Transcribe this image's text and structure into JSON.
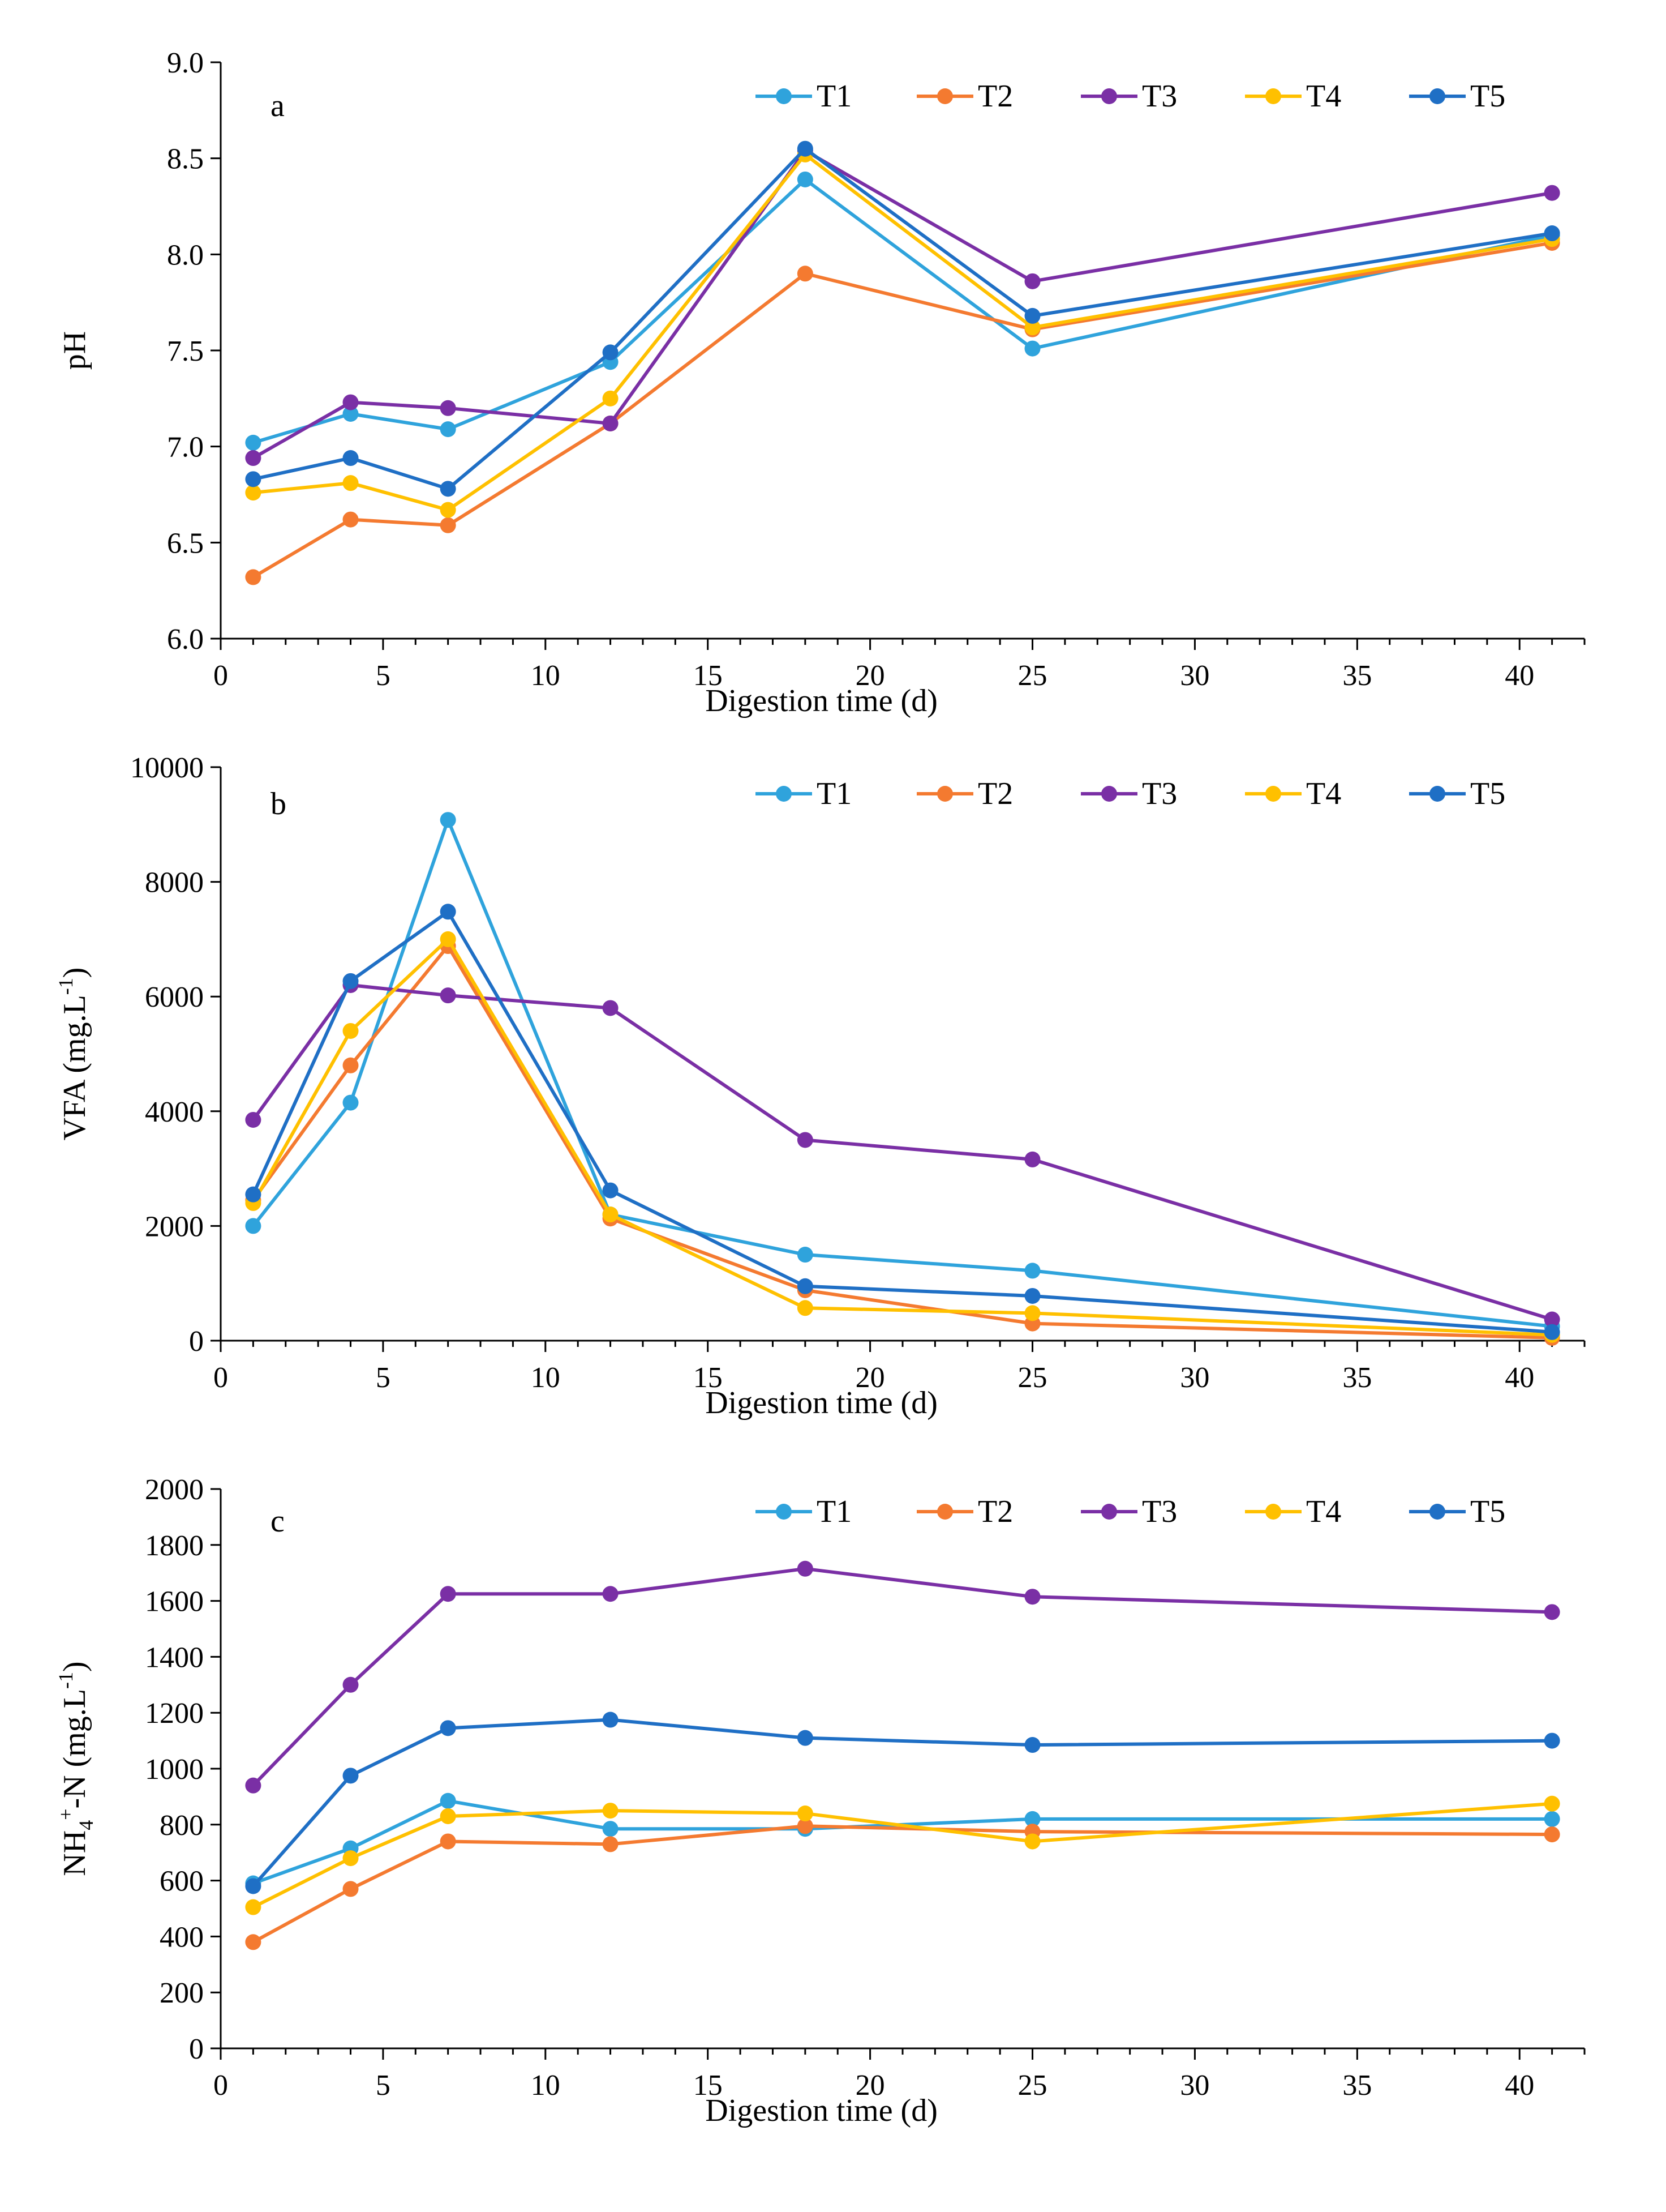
{
  "colors": {
    "T1": "#2fa3dc",
    "T2": "#f47a30",
    "T3": "#7a2fa5",
    "T4": "#ffc000",
    "T5": "#1f6fc5",
    "axis": "#000000"
  },
  "chart_data": [
    {
      "type": "line",
      "panel_label": "a",
      "title": "",
      "xlabel": "Digestion time (d)",
      "ylabel": "pH",
      "xlim": [
        0,
        42
      ],
      "ylim": [
        6.0,
        9.0
      ],
      "x_ticks": [
        "0",
        "5",
        "10",
        "15",
        "20",
        "25",
        "30",
        "35",
        "40"
      ],
      "y_ticks": [
        "6.0",
        "6.5",
        "7.0",
        "7.5",
        "8.0",
        "8.5",
        "9.0"
      ],
      "y_tick_values": [
        6.0,
        6.5,
        7.0,
        7.5,
        8.0,
        8.5,
        9.0
      ],
      "x": [
        1,
        4,
        7,
        12,
        18,
        25,
        41
      ],
      "legend": [
        "T1",
        "T2",
        "T3",
        "T4",
        "T5"
      ],
      "series": [
        {
          "name": "T1",
          "values": [
            7.02,
            7.17,
            7.09,
            7.44,
            8.39,
            7.51,
            8.1
          ]
        },
        {
          "name": "T2",
          "values": [
            6.32,
            6.62,
            6.59,
            7.12,
            7.9,
            7.61,
            8.06
          ]
        },
        {
          "name": "T3",
          "values": [
            6.94,
            7.23,
            7.2,
            7.12,
            8.54,
            7.86,
            8.32
          ]
        },
        {
          "name": "T4",
          "values": [
            6.76,
            6.81,
            6.67,
            7.25,
            8.52,
            7.62,
            8.08
          ]
        },
        {
          "name": "T5",
          "values": [
            6.83,
            6.94,
            6.78,
            7.49,
            8.55,
            7.68,
            8.11
          ]
        }
      ]
    },
    {
      "type": "line",
      "panel_label": "b",
      "title": "",
      "xlabel": "Digestion time (d)",
      "ylabel": "VFA (mg.L",
      "ylabel_sup": "-1",
      "ylabel_end": ")",
      "xlim": [
        0,
        42
      ],
      "ylim": [
        0,
        10000
      ],
      "x_ticks": [
        "0",
        "5",
        "10",
        "15",
        "20",
        "25",
        "30",
        "35",
        "40"
      ],
      "y_ticks": [
        "0",
        "2000",
        "4000",
        "6000",
        "8000",
        "10000"
      ],
      "y_tick_values": [
        0,
        2000,
        4000,
        6000,
        8000,
        10000
      ],
      "x": [
        1,
        4,
        7,
        12,
        18,
        25,
        41
      ],
      "legend": [
        "T1",
        "T2",
        "T3",
        "T4",
        "T5"
      ],
      "series": [
        {
          "name": "T1",
          "values": [
            2000,
            4150,
            9080,
            2200,
            1500,
            1220,
            250
          ]
        },
        {
          "name": "T2",
          "values": [
            2450,
            4800,
            6880,
            2130,
            880,
            300,
            50
          ]
        },
        {
          "name": "T3",
          "values": [
            3850,
            6200,
            6020,
            5800,
            3500,
            3160,
            370
          ]
        },
        {
          "name": "T4",
          "values": [
            2400,
            5400,
            7000,
            2200,
            570,
            480,
            100
          ]
        },
        {
          "name": "T5",
          "values": [
            2550,
            6270,
            7480,
            2620,
            950,
            780,
            150
          ]
        }
      ]
    },
    {
      "type": "line",
      "panel_label": "c",
      "title": "",
      "xlabel": "Digestion time (d)",
      "ylabel": "NH",
      "ylabel_sub": "4",
      "ylabel_sup": "+",
      "ylabel_mid": "-N (mg.L",
      "ylabel_sup2": "-1",
      "ylabel_end": ")",
      "xlim": [
        0,
        42
      ],
      "ylim": [
        0,
        2000
      ],
      "x_ticks": [
        "0",
        "5",
        "10",
        "15",
        "20",
        "25",
        "30",
        "35",
        "40"
      ],
      "y_ticks": [
        "0",
        "200",
        "400",
        "600",
        "800",
        "1000",
        "1200",
        "1400",
        "1600",
        "1800",
        "2000"
      ],
      "y_tick_values": [
        0,
        200,
        400,
        600,
        800,
        1000,
        1200,
        1400,
        1600,
        1800,
        2000
      ],
      "x": [
        1,
        4,
        7,
        12,
        18,
        25,
        41
      ],
      "legend": [
        "T1",
        "T2",
        "T3",
        "T4",
        "T5"
      ],
      "series": [
        {
          "name": "T1",
          "values": [
            590,
            715,
            885,
            785,
            785,
            820,
            820
          ]
        },
        {
          "name": "T2",
          "values": [
            380,
            570,
            740,
            730,
            795,
            775,
            765
          ]
        },
        {
          "name": "T3",
          "values": [
            940,
            1300,
            1625,
            1625,
            1715,
            1615,
            1560
          ]
        },
        {
          "name": "T4",
          "values": [
            505,
            680,
            830,
            850,
            840,
            740,
            875
          ]
        },
        {
          "name": "T5",
          "values": [
            580,
            975,
            1145,
            1175,
            1110,
            1085,
            1100
          ]
        }
      ]
    }
  ]
}
